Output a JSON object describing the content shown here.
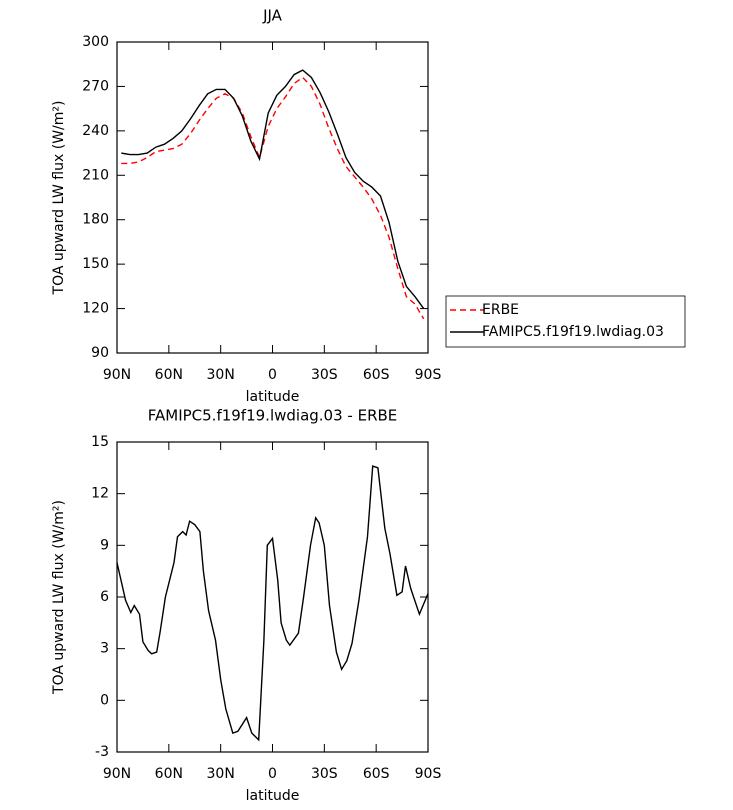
{
  "chart_data": [
    {
      "type": "line",
      "title": "JJA",
      "xlabel": "latitude",
      "ylabel": "TOA upward LW flux (W/m²)",
      "x": [
        87.5,
        82.5,
        77.5,
        72.5,
        67.5,
        62.5,
        57.5,
        52.5,
        47.5,
        42.5,
        37.5,
        32.5,
        27.5,
        22.5,
        17.5,
        12.5,
        7.5,
        2.5,
        -2.5,
        -7.5,
        -12.5,
        -17.5,
        -22.5,
        -27.5,
        -32.5,
        -37.5,
        -42.5,
        -47.5,
        -52.5,
        -57.5,
        -62.5,
        -67.5,
        -72.5,
        -77.5,
        -82.5,
        -87.5
      ],
      "series": [
        {
          "name": "ERBE",
          "color": "#ff0000",
          "line_style": "dashed",
          "values": [
            218,
            218,
            219,
            222,
            226,
            227,
            228,
            231,
            238,
            247,
            255,
            262,
            265,
            262,
            252,
            236,
            222,
            243,
            255,
            263,
            272,
            276,
            270,
            258,
            242,
            228,
            216,
            209,
            202,
            194,
            183,
            168,
            147,
            128,
            123,
            113
          ]
        },
        {
          "name": "FAMIPC5.f19f19.lwdiag.03",
          "color": "#000000",
          "line_style": "solid",
          "values": [
            225,
            224,
            224,
            225,
            229,
            231,
            235,
            240,
            248,
            257,
            265,
            268,
            268,
            262,
            250,
            233,
            221,
            252,
            264,
            270,
            278,
            281,
            276,
            266,
            253,
            238,
            222,
            212,
            206,
            202,
            196,
            178,
            152,
            135,
            128,
            120
          ]
        }
      ],
      "xlim": [
        90,
        -90
      ],
      "xticks": [
        {
          "value": 90,
          "label": "90N"
        },
        {
          "value": 60,
          "label": "60N"
        },
        {
          "value": 30,
          "label": "30N"
        },
        0,
        {
          "value": -30,
          "label": "30S"
        },
        {
          "value": -60,
          "label": "60S"
        },
        {
          "value": -90,
          "label": "90S"
        }
      ],
      "ylim": [
        90,
        300
      ],
      "yticks": [
        90,
        120,
        150,
        180,
        210,
        240,
        270,
        300
      ],
      "legend": "right"
    },
    {
      "type": "line",
      "title": "FAMIPC5.f19f19.lwdiag.03 - ERBE",
      "xlabel": "latitude",
      "ylabel": "TOA upward LW flux (W/m²)",
      "x": [
        90,
        85,
        82,
        80,
        77,
        75,
        72,
        70,
        67,
        65,
        62,
        57,
        55,
        52,
        50,
        48,
        45,
        42,
        40,
        37,
        33,
        30,
        27,
        23,
        20,
        15,
        12,
        8,
        5,
        3,
        0,
        -3,
        -5,
        -8,
        -10,
        -15,
        -18,
        -22,
        -25,
        -27,
        -30,
        -33,
        -37,
        -40,
        -43,
        -46,
        -50,
        -55,
        -58,
        -61,
        -65,
        -68,
        -72,
        -75,
        -77,
        -80,
        -85,
        -90
      ],
      "values": [
        8,
        5.8,
        5.1,
        5.5,
        5,
        3.4,
        2.9,
        2.7,
        2.8,
        4,
        6,
        8,
        9.5,
        9.8,
        9.6,
        10.4,
        10.2,
        9.8,
        7.5,
        5.2,
        3.5,
        1.2,
        -0.5,
        -1.9,
        -1.8,
        -1,
        -1.9,
        -2.3,
        3.5,
        9,
        9.4,
        7,
        4.5,
        3.5,
        3.2,
        3.9,
        6,
        9,
        10.6,
        10.3,
        9,
        5.5,
        2.8,
        1.8,
        2.3,
        3.3,
        5.8,
        9.5,
        13.6,
        13.5,
        10,
        8.5,
        6.1,
        6.3,
        7.8,
        6.5,
        5,
        6.2
      ],
      "color": "#000000",
      "xlim": [
        90,
        -90
      ],
      "xticks": [
        {
          "value": 90,
          "label": "90N"
        },
        {
          "value": 60,
          "label": "60N"
        },
        {
          "value": 30,
          "label": "30N"
        },
        0,
        {
          "value": -30,
          "label": "30S"
        },
        {
          "value": -60,
          "label": "60S"
        },
        {
          "value": -90,
          "label": "90S"
        }
      ],
      "ylim": [
        -3,
        15
      ],
      "yticks": [
        -3,
        0,
        3,
        6,
        9,
        12,
        15
      ]
    }
  ]
}
